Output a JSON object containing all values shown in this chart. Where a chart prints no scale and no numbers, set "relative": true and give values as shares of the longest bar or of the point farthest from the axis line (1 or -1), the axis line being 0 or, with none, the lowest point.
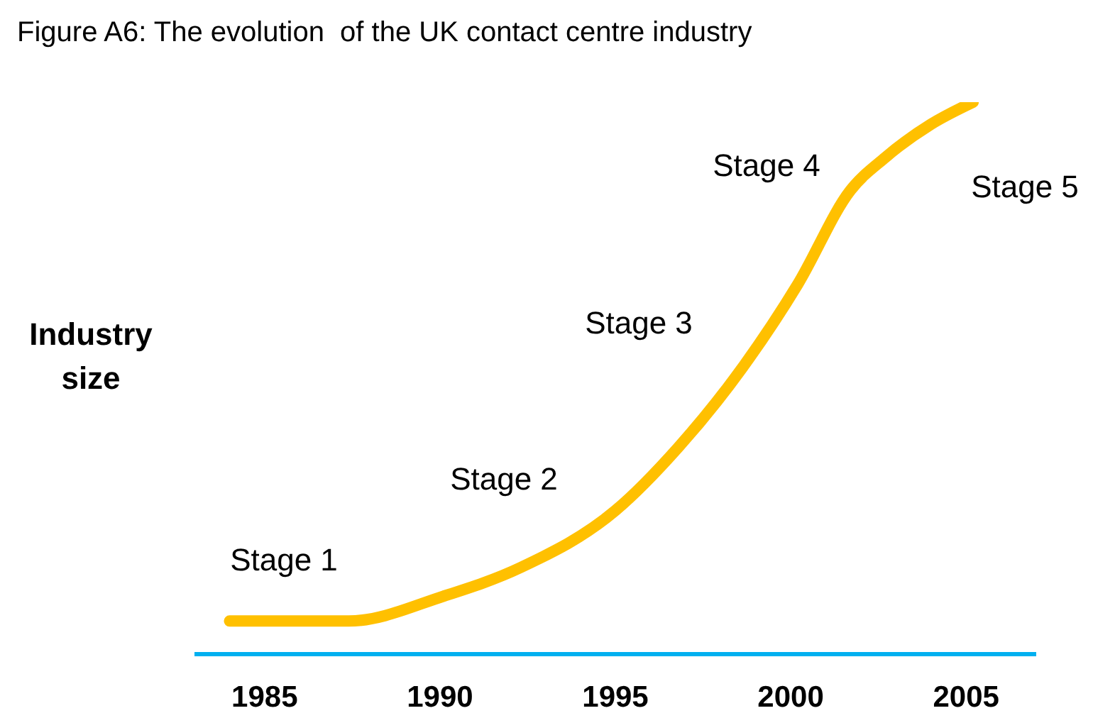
{
  "chart_data": {
    "type": "line",
    "title": "Figure A6: The evolution  of the UK contact centre industry",
    "ylabel": "Industry size",
    "relative": true,
    "x": [
      1984.0,
      1987.4,
      1990.1,
      1992.3,
      1995.0,
      1996.8,
      1998.6,
      2000.2,
      2001.7,
      2002.7,
      2004.0,
      2005.2
    ],
    "series": [
      {
        "color": "#ffc000",
        "values": [
          0.06,
          0.06,
          0.105,
          0.157,
          0.26,
          0.375,
          0.517,
          0.67,
          0.84,
          0.9,
          0.96,
          1
        ]
      }
    ],
    "xlim": [
      1983,
      2007
    ],
    "xticks": [
      1985,
      1990,
      1995,
      2000,
      2005
    ],
    "grid": false,
    "legend": false,
    "marker": "none",
    "line_style": "solid",
    "annotations": [
      "Stage 1",
      "Stage 2",
      "Stage 3",
      "Stage 4",
      "Stage 5"
    ]
  }
}
